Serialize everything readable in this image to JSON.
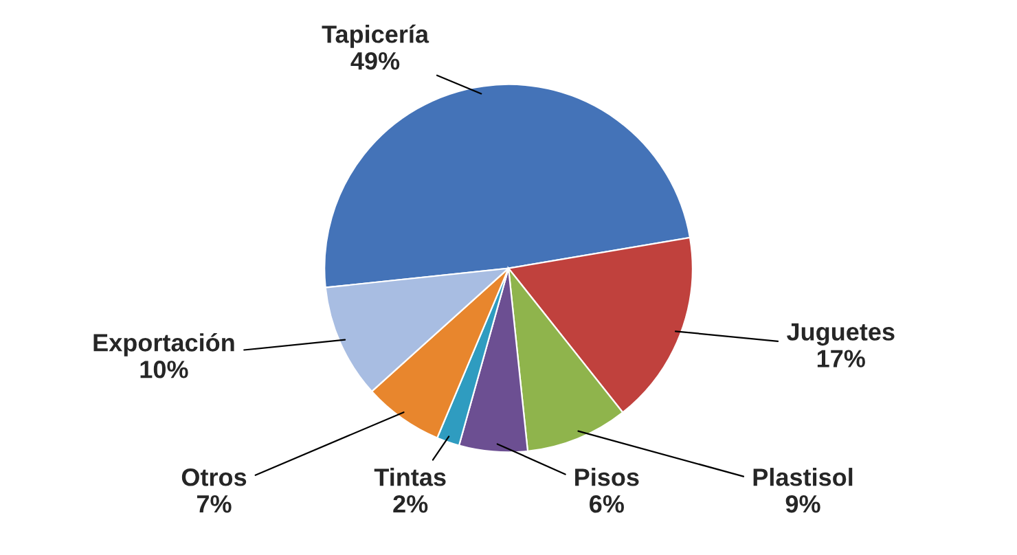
{
  "chart_data": {
    "type": "pie",
    "categories": [
      "Tapicería",
      "Juguetes",
      "Plastisol",
      "Pisos",
      "Tintas",
      "Otros",
      "Exportación"
    ],
    "values": [
      49,
      17,
      9,
      6,
      2,
      7,
      10
    ],
    "colors": [
      "#4473b8",
      "#c0413d",
      "#8fb44c",
      "#6c4f92",
      "#2f9cc0",
      "#e8862d",
      "#a8bde2"
    ],
    "value_labels": [
      "49%",
      "17%",
      "9%",
      "6%",
      "2%",
      "7%",
      "10%"
    ],
    "legend": false
  }
}
